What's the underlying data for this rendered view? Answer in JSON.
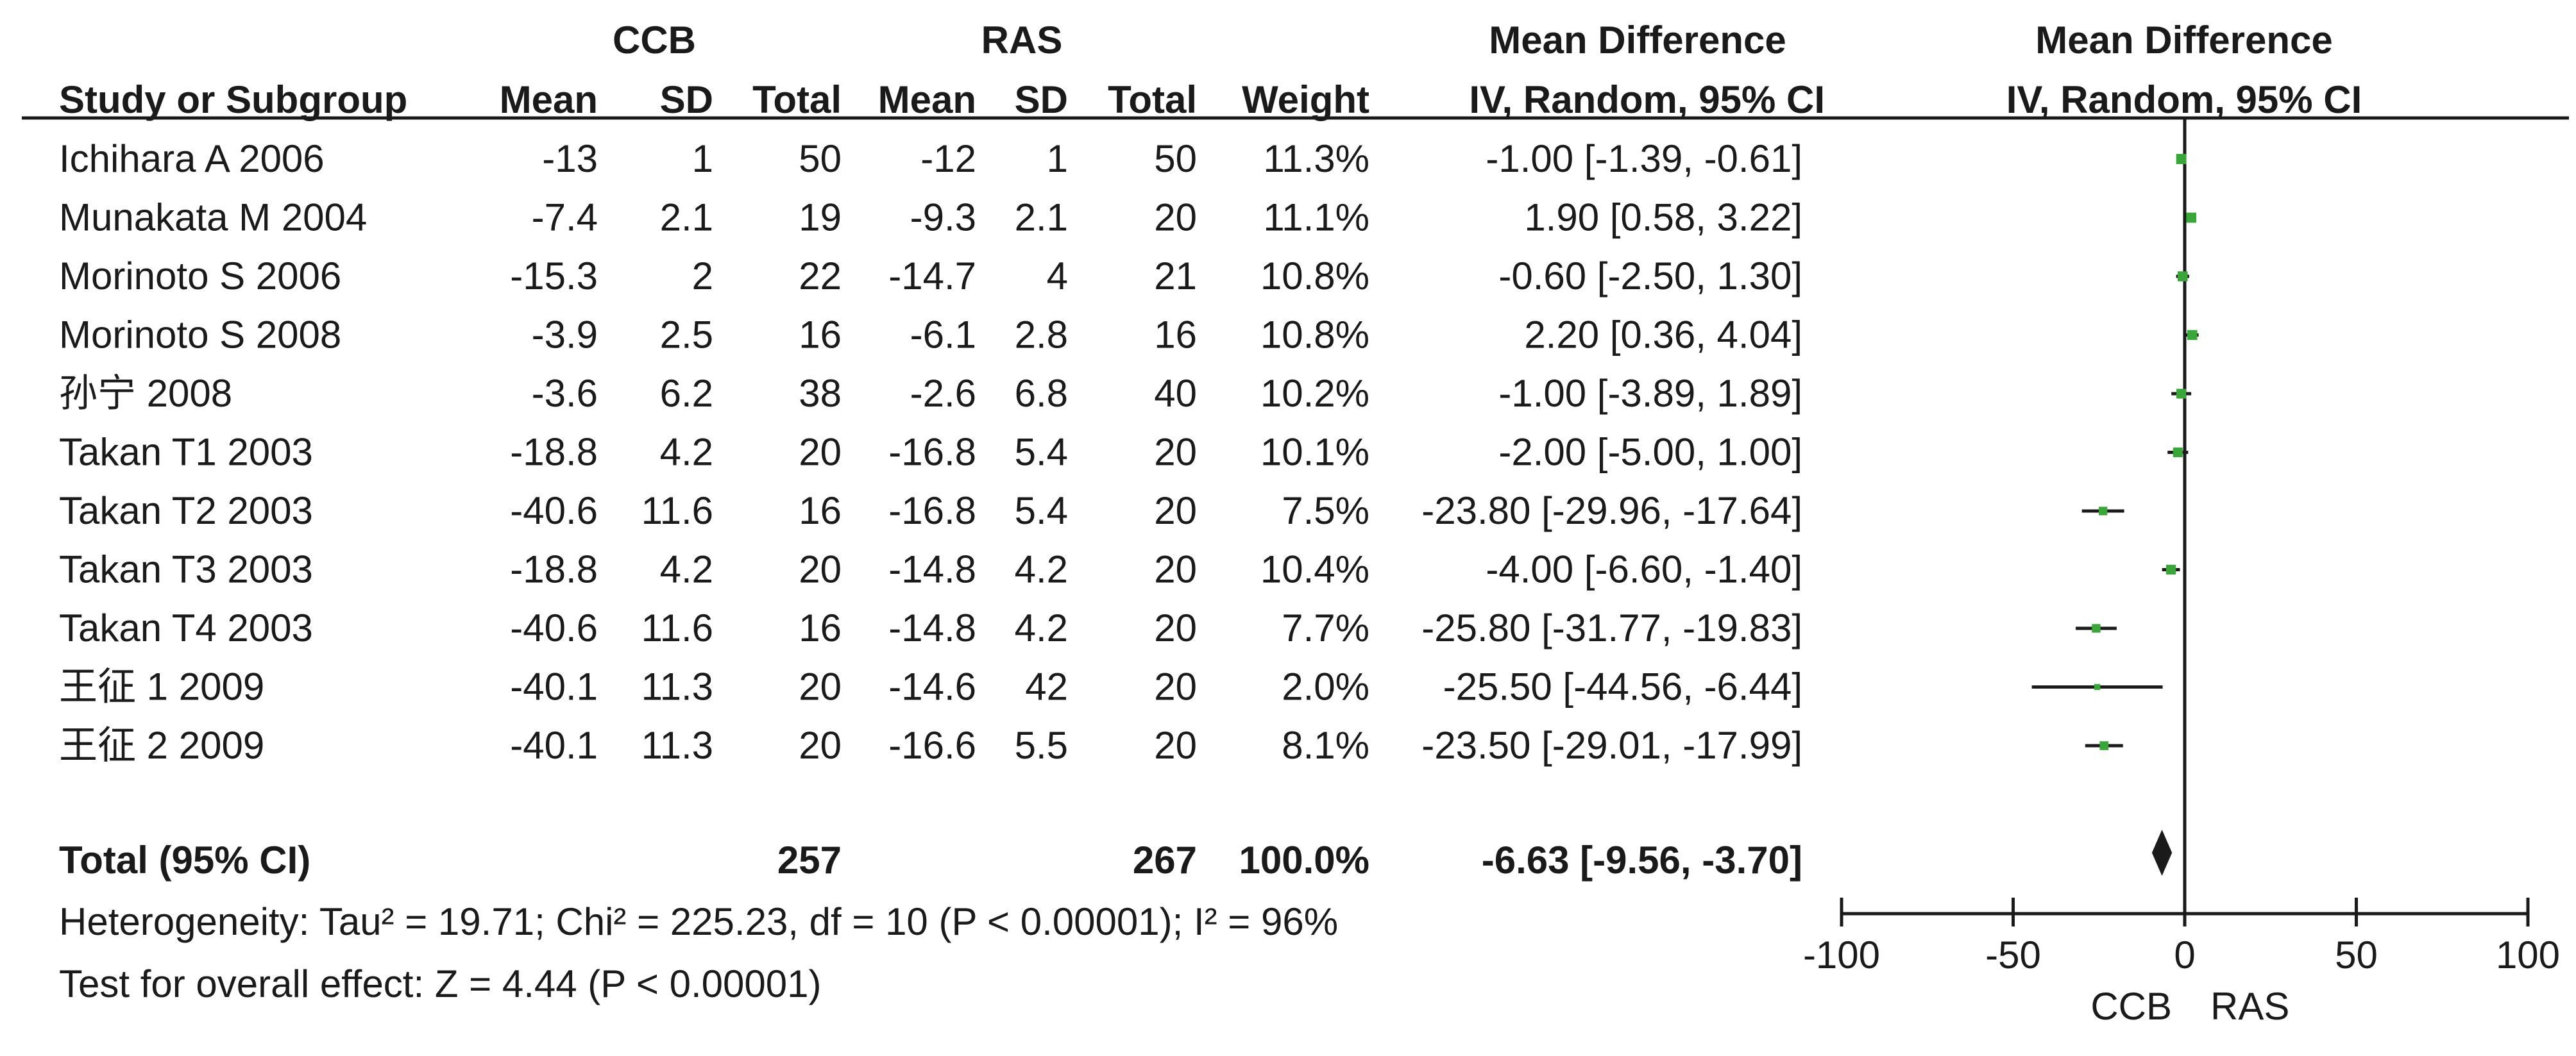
{
  "headers": {
    "group_ccb": "CCB",
    "group_ras": "RAS",
    "md_left": "Mean Difference",
    "md_right": "Mean Difference",
    "study": "Study or Subgroup",
    "mean1": "Mean",
    "sd1": "SD",
    "total1": "Total",
    "mean2": "Mean",
    "sd2": "SD",
    "total2": "Total",
    "weight": "Weight",
    "method_left": "IV, Random, 95% CI",
    "method_right": "IV, Random, 95% CI"
  },
  "studies": [
    {
      "name": "Ichihara A 2006",
      "m1": "-13",
      "sd1": "1",
      "n1": "50",
      "m2": "-12",
      "sd2": "1",
      "n2": "50",
      "weight": "11.3%",
      "ci": "-1.00 [-1.39, -0.61]"
    },
    {
      "name": "Munakata M 2004",
      "m1": "-7.4",
      "sd1": "2.1",
      "n1": "19",
      "m2": "-9.3",
      "sd2": "2.1",
      "n2": "20",
      "weight": "11.1%",
      "ci": "1.90 [0.58, 3.22]"
    },
    {
      "name": "Morinoto S 2006",
      "m1": "-15.3",
      "sd1": "2",
      "n1": "22",
      "m2": "-14.7",
      "sd2": "4",
      "n2": "21",
      "weight": "10.8%",
      "ci": "-0.60 [-2.50, 1.30]"
    },
    {
      "name": "Morinoto S 2008",
      "m1": "-3.9",
      "sd1": "2.5",
      "n1": "16",
      "m2": "-6.1",
      "sd2": "2.8",
      "n2": "16",
      "weight": "10.8%",
      "ci": "2.20 [0.36, 4.04]"
    },
    {
      "name": "孙宁 2008",
      "m1": "-3.6",
      "sd1": "6.2",
      "n1": "38",
      "m2": "-2.6",
      "sd2": "6.8",
      "n2": "40",
      "weight": "10.2%",
      "ci": "-1.00 [-3.89, 1.89]"
    },
    {
      "name": "Takan T1 2003",
      "m1": "-18.8",
      "sd1": "4.2",
      "n1": "20",
      "m2": "-16.8",
      "sd2": "5.4",
      "n2": "20",
      "weight": "10.1%",
      "ci": "-2.00 [-5.00, 1.00]"
    },
    {
      "name": "Takan T2 2003",
      "m1": "-40.6",
      "sd1": "11.6",
      "n1": "16",
      "m2": "-16.8",
      "sd2": "5.4",
      "n2": "20",
      "weight": "7.5%",
      "ci": "-23.80 [-29.96, -17.64]"
    },
    {
      "name": "Takan T3 2003",
      "m1": "-18.8",
      "sd1": "4.2",
      "n1": "20",
      "m2": "-14.8",
      "sd2": "4.2",
      "n2": "20",
      "weight": "10.4%",
      "ci": "-4.00 [-6.60, -1.40]"
    },
    {
      "name": "Takan T4 2003",
      "m1": "-40.6",
      "sd1": "11.6",
      "n1": "16",
      "m2": "-14.8",
      "sd2": "4.2",
      "n2": "20",
      "weight": "7.7%",
      "ci": "-25.80 [-31.77, -19.83]"
    },
    {
      "name": "王征 1 2009",
      "m1": "-40.1",
      "sd1": "11.3",
      "n1": "20",
      "m2": "-14.6",
      "sd2": "42",
      "n2": "20",
      "weight": "2.0%",
      "ci": "-25.50 [-44.56, -6.44]"
    },
    {
      "name": "王征 2 2009",
      "m1": "-40.1",
      "sd1": "11.3",
      "n1": "20",
      "m2": "-16.6",
      "sd2": "5.5",
      "n2": "20",
      "weight": "8.1%",
      "ci": "-23.50 [-29.01, -17.99]"
    }
  ],
  "total": {
    "label": "Total (95% CI)",
    "n1": "257",
    "n2": "267",
    "weight": "100.0%",
    "ci": "-6.63 [-9.56, -3.70]"
  },
  "heterogeneity": "Heterogeneity: Tau² = 19.71; Chi² = 225.23, df = 10 (P < 0.00001); I² = 96%",
  "overall_effect": "Test for overall effect: Z = 4.44 (P < 0.00001)",
  "axis": {
    "ticks": [
      "-100",
      "-50",
      "0",
      "50",
      "100"
    ],
    "favours_left": "CCB",
    "favours_right": "RAS"
  },
  "colors": {
    "marker": "#3aa63a",
    "text": "#1a1a1a"
  },
  "chart_data": {
    "type": "forest",
    "xlim": [
      -100,
      100
    ],
    "x_ticks": [
      -100,
      -50,
      0,
      50,
      100
    ],
    "reference_line": 0,
    "studies": [
      {
        "name": "Ichihara A 2006",
        "estimate": -1.0,
        "lower": -1.39,
        "upper": -0.61,
        "weight": 11.3
      },
      {
        "name": "Munakata M 2004",
        "estimate": 1.9,
        "lower": 0.58,
        "upper": 3.22,
        "weight": 11.1
      },
      {
        "name": "Morinoto S 2006",
        "estimate": -0.6,
        "lower": -2.5,
        "upper": 1.3,
        "weight": 10.8
      },
      {
        "name": "Morinoto S 2008",
        "estimate": 2.2,
        "lower": 0.36,
        "upper": 4.04,
        "weight": 10.8
      },
      {
        "name": "孙宁 2008",
        "estimate": -1.0,
        "lower": -3.89,
        "upper": 1.89,
        "weight": 10.2
      },
      {
        "name": "Takan T1 2003",
        "estimate": -2.0,
        "lower": -5.0,
        "upper": 1.0,
        "weight": 10.1
      },
      {
        "name": "Takan T2 2003",
        "estimate": -23.8,
        "lower": -29.96,
        "upper": -17.64,
        "weight": 7.5
      },
      {
        "name": "Takan T3 2003",
        "estimate": -4.0,
        "lower": -6.6,
        "upper": -1.4,
        "weight": 10.4
      },
      {
        "name": "Takan T4 2003",
        "estimate": -25.8,
        "lower": -31.77,
        "upper": -19.83,
        "weight": 7.7
      },
      {
        "name": "王征 1 2009",
        "estimate": -25.5,
        "lower": -44.56,
        "upper": -6.44,
        "weight": 2.0
      },
      {
        "name": "王征 2 2009",
        "estimate": -23.5,
        "lower": -29.01,
        "upper": -17.99,
        "weight": 8.1
      }
    ],
    "pooled": {
      "estimate": -6.63,
      "lower": -9.56,
      "upper": -3.7
    }
  }
}
